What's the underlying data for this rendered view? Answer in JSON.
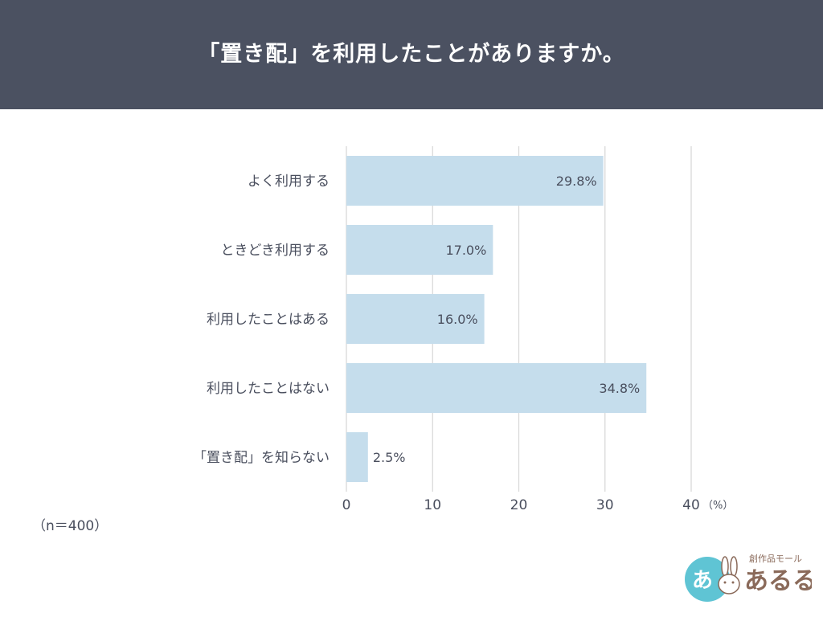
{
  "header": {
    "title": "「置き配」を利用したことがありますか。",
    "background": "#4b5161"
  },
  "note": "（n＝400）",
  "chart_data": {
    "type": "bar",
    "orientation": "horizontal",
    "categories": [
      "よく利用する",
      "ときどき利用する",
      "利用したことはある",
      "利用したことはない",
      "「置き配」を知らない"
    ],
    "values": [
      29.8,
      17.0,
      16.0,
      34.8,
      2.5
    ],
    "data_labels": [
      "29.8%",
      "17.0%",
      "16.0%",
      "34.8%",
      "2.5%"
    ],
    "xlim": [
      0,
      40
    ],
    "xticks": [
      0,
      10,
      20,
      30,
      40
    ],
    "xtick_labels": [
      "0",
      "10",
      "20",
      "30",
      "40"
    ],
    "x_unit": "（%）",
    "grid": true,
    "bar_color": "#c5ddec",
    "grid_color": "#d9d9d9",
    "label_color": "#4a4f5e"
  },
  "logo": {
    "small_text": "創作品モール",
    "big_text": "あるる",
    "badge_char": "あ",
    "badge_color": "#5fc4d4",
    "text_color": "#8a6a5a"
  }
}
